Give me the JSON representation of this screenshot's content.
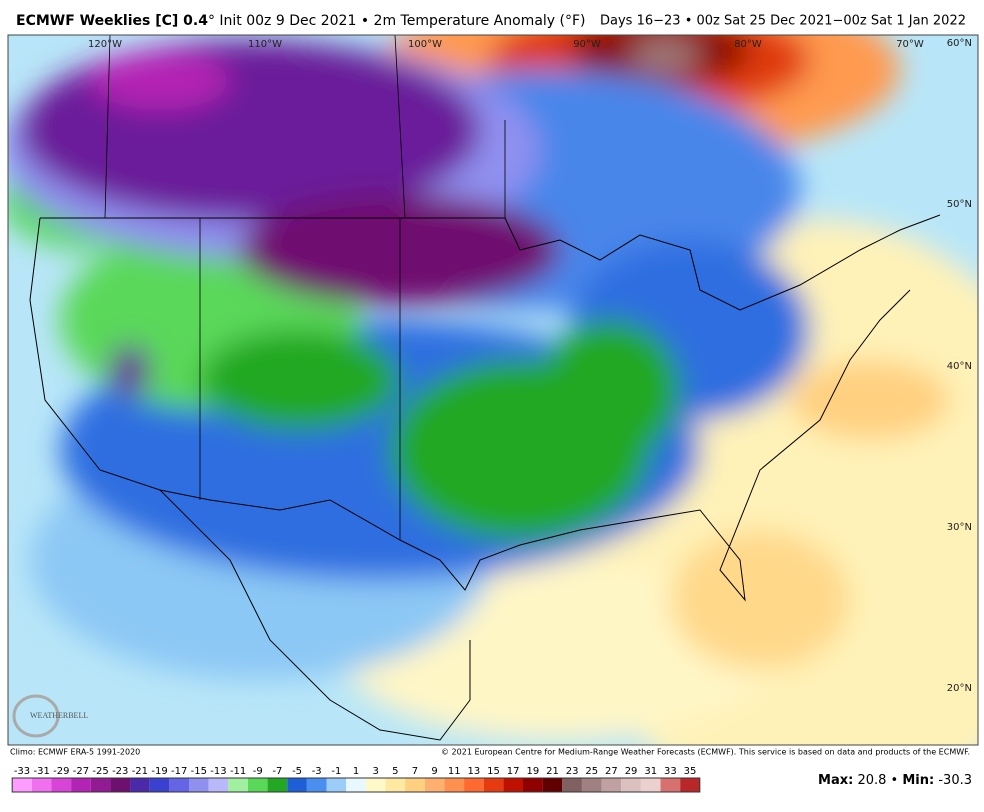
{
  "header": {
    "title_main": "ECMWF Weeklies [C] 0.4",
    "title_detail": "° Init 00z 9 Dec 2021 • 2m Temperature Anomaly (°F)",
    "valid": "Days 16−23 • 00z Sat 25 Dec 2021−00z Sat 1 Jan 2022"
  },
  "map": {
    "longitude_labels": [
      "120°W",
      "110°W",
      "100°W",
      "90°W",
      "80°W",
      "70°W"
    ],
    "latitude_labels": [
      "60°N",
      "50°N",
      "40°N",
      "30°N",
      "20°N"
    ]
  },
  "logo": "WEATHERBELL",
  "footer": {
    "climo": "Climo: ECMWF ERA-5 1991-2020",
    "copyright": "© 2021 European Centre for Medium-Range Weather Forecasts (ECMWF). This service is based on data and products of the ECMWF."
  },
  "legend": {
    "ticks": [
      -33,
      -31,
      -29,
      -27,
      -25,
      -23,
      -21,
      -19,
      -17,
      -15,
      -13,
      -11,
      -9,
      -7,
      -5,
      -3,
      -1,
      1,
      3,
      5,
      7,
      9,
      11,
      13,
      15,
      17,
      19,
      21,
      23,
      25,
      27,
      29,
      31,
      33,
      35
    ],
    "colors": [
      "#ff9cff",
      "#f070f0",
      "#d844d8",
      "#b424b4",
      "#921a92",
      "#6e1070",
      "#4a2aa8",
      "#3a40d0",
      "#6464e4",
      "#9090f0",
      "#b8b8fa",
      "#a0f0a0",
      "#5ad85a",
      "#22a822",
      "#1e5fd8",
      "#4a8ef0",
      "#9ccdf8",
      "#e8f8ff",
      "#fff8c8",
      "#ffe8a0",
      "#ffd080",
      "#ffb070",
      "#ff9050",
      "#ff6a30",
      "#e83a10",
      "#c01000",
      "#900000",
      "#600000",
      "#806060",
      "#a08080",
      "#c0a0a0",
      "#dcc0c0",
      "#ecd0d0",
      "#d87070",
      "#b82828"
    ]
  },
  "stats": {
    "max_label": "Max:",
    "max": 20.8,
    "separator": "•",
    "min_label": "Min:",
    "min": -30.3
  }
}
